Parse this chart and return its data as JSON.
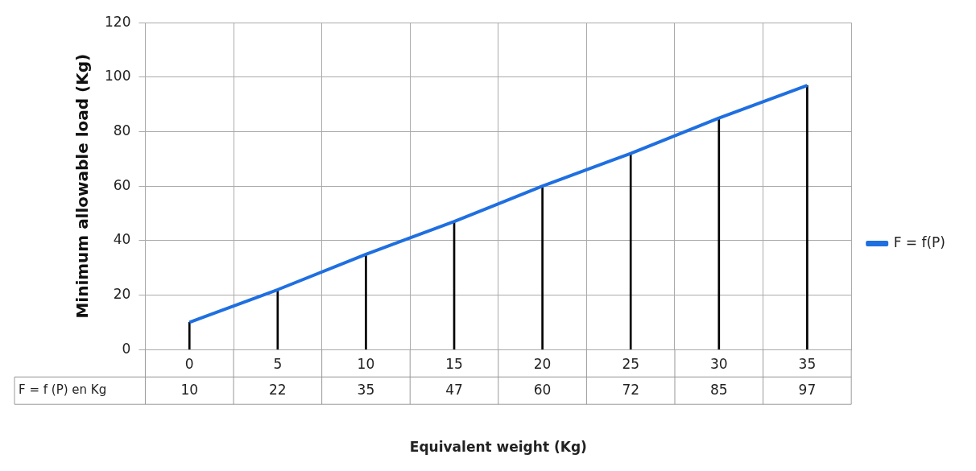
{
  "chart_data": {
    "type": "line",
    "xlabel": "Equivalent weight (Kg)",
    "ylabel": "Minimum allowable load (Kg)",
    "categories": [
      "0",
      "5",
      "10",
      "15",
      "20",
      "25",
      "30",
      "35"
    ],
    "series": [
      {
        "name": "F = f(P)",
        "color": "#1f6fe0",
        "values": [
          10,
          22,
          35,
          47,
          60,
          72,
          85,
          97
        ],
        "value_labels": [
          "10",
          "22",
          "35",
          "47",
          "60",
          "72",
          "85",
          "97"
        ]
      },
      {
        "type": "bar",
        "color": "#000000",
        "values": [
          10,
          22,
          35,
          47,
          60,
          72,
          85,
          97
        ]
      }
    ],
    "ylim": [
      0,
      120
    ],
    "yticks": [
      0,
      20,
      40,
      60,
      80,
      100,
      120
    ],
    "grid": true,
    "legend": "right",
    "marker": "none",
    "annotations": [
      "F = f (P) en Kg"
    ]
  }
}
